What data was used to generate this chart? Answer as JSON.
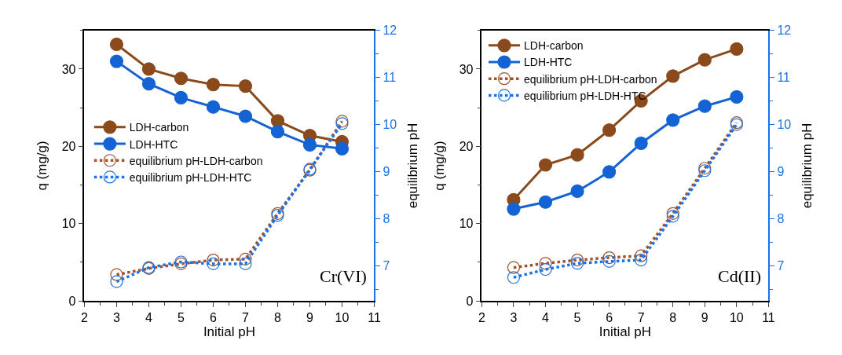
{
  "chart_data": [
    {
      "type": "line",
      "xlabel": "Initial pH",
      "ylabel": "q (mg/g)",
      "y2label": "equilibrium pH",
      "annotations": [
        "Cr(VI)"
      ],
      "x": [
        3,
        4,
        5,
        6,
        7,
        8,
        9,
        10
      ],
      "xlim": [
        2,
        11
      ],
      "xticks": [
        2,
        3,
        4,
        5,
        6,
        7,
        8,
        9,
        10,
        11
      ],
      "ylim": [
        0,
        35
      ],
      "yticks": [
        0,
        10,
        20,
        30
      ],
      "y2lim": [
        6.25,
        12
      ],
      "y2ticks": [
        7,
        8,
        9,
        10,
        11,
        12
      ],
      "legend": "left",
      "series": [
        {
          "name": "LDH-carbon",
          "color": "#8b4a1c",
          "marker": "circle",
          "line_style": "solid",
          "values": [
            33.2,
            30.0,
            28.8,
            28.0,
            27.8,
            23.3,
            21.4,
            20.6
          ]
        },
        {
          "name": "LDH-HTC",
          "color": "#1463d4",
          "marker": "circle",
          "line_style": "solid",
          "values": [
            31.0,
            28.1,
            26.3,
            25.1,
            23.9,
            21.9,
            20.2,
            19.7
          ]
        },
        {
          "name": "equilibrium pH-LDH-carbon",
          "color": "#a0522d",
          "marker": "circle-open",
          "line_style": "dotted",
          "axis": "y2",
          "values": [
            6.81,
            6.94,
            7.04,
            7.12,
            7.14,
            8.11,
            9.03,
            10.07
          ]
        },
        {
          "name": "equilibrium pH-LDH-HTC",
          "color": "#1a73e8",
          "marker": "circle-open",
          "line_style": "dotted",
          "axis": "y2",
          "values": [
            6.66,
            6.96,
            7.08,
            7.04,
            7.04,
            8.07,
            9.05,
            10.02
          ]
        }
      ]
    },
    {
      "type": "line",
      "xlabel": "Initial pH",
      "ylabel": "q (mg/g)",
      "y2label": "equilibrium pH",
      "annotations": [
        "Cd(II)"
      ],
      "x": [
        3,
        4,
        5,
        6,
        7,
        8,
        9,
        10
      ],
      "xlim": [
        2,
        11
      ],
      "xticks": [
        2,
        3,
        4,
        5,
        6,
        7,
        8,
        9,
        10,
        11
      ],
      "ylim": [
        0,
        35
      ],
      "yticks": [
        0,
        10,
        20,
        30
      ],
      "y2lim": [
        6.25,
        12
      ],
      "y2ticks": [
        7,
        8,
        9,
        10,
        11,
        12
      ],
      "legend": "top left",
      "series": [
        {
          "name": "LDH-carbon",
          "color": "#8b4a1c",
          "marker": "circle",
          "line_style": "solid",
          "values": [
            13.1,
            17.6,
            18.9,
            22.1,
            25.9,
            29.1,
            31.2,
            32.6
          ]
        },
        {
          "name": "LDH-HTC",
          "color": "#1463d4",
          "marker": "circle",
          "line_style": "solid",
          "values": [
            11.9,
            12.8,
            14.2,
            16.7,
            20.4,
            23.4,
            25.2,
            26.4
          ]
        },
        {
          "name": "equilibrium pH-LDH-carbon",
          "color": "#a0522d",
          "marker": "circle-open",
          "line_style": "dotted",
          "axis": "y2",
          "values": [
            6.96,
            7.05,
            7.12,
            7.17,
            7.21,
            8.11,
            9.07,
            10.04
          ]
        },
        {
          "name": "equilibrium pH-LDH-HTC",
          "color": "#1a73e8",
          "marker": "circle-open",
          "line_style": "dotted",
          "axis": "y2",
          "values": [
            6.75,
            6.92,
            7.05,
            7.09,
            7.12,
            8.05,
            9.02,
            10.0
          ]
        }
      ]
    }
  ]
}
